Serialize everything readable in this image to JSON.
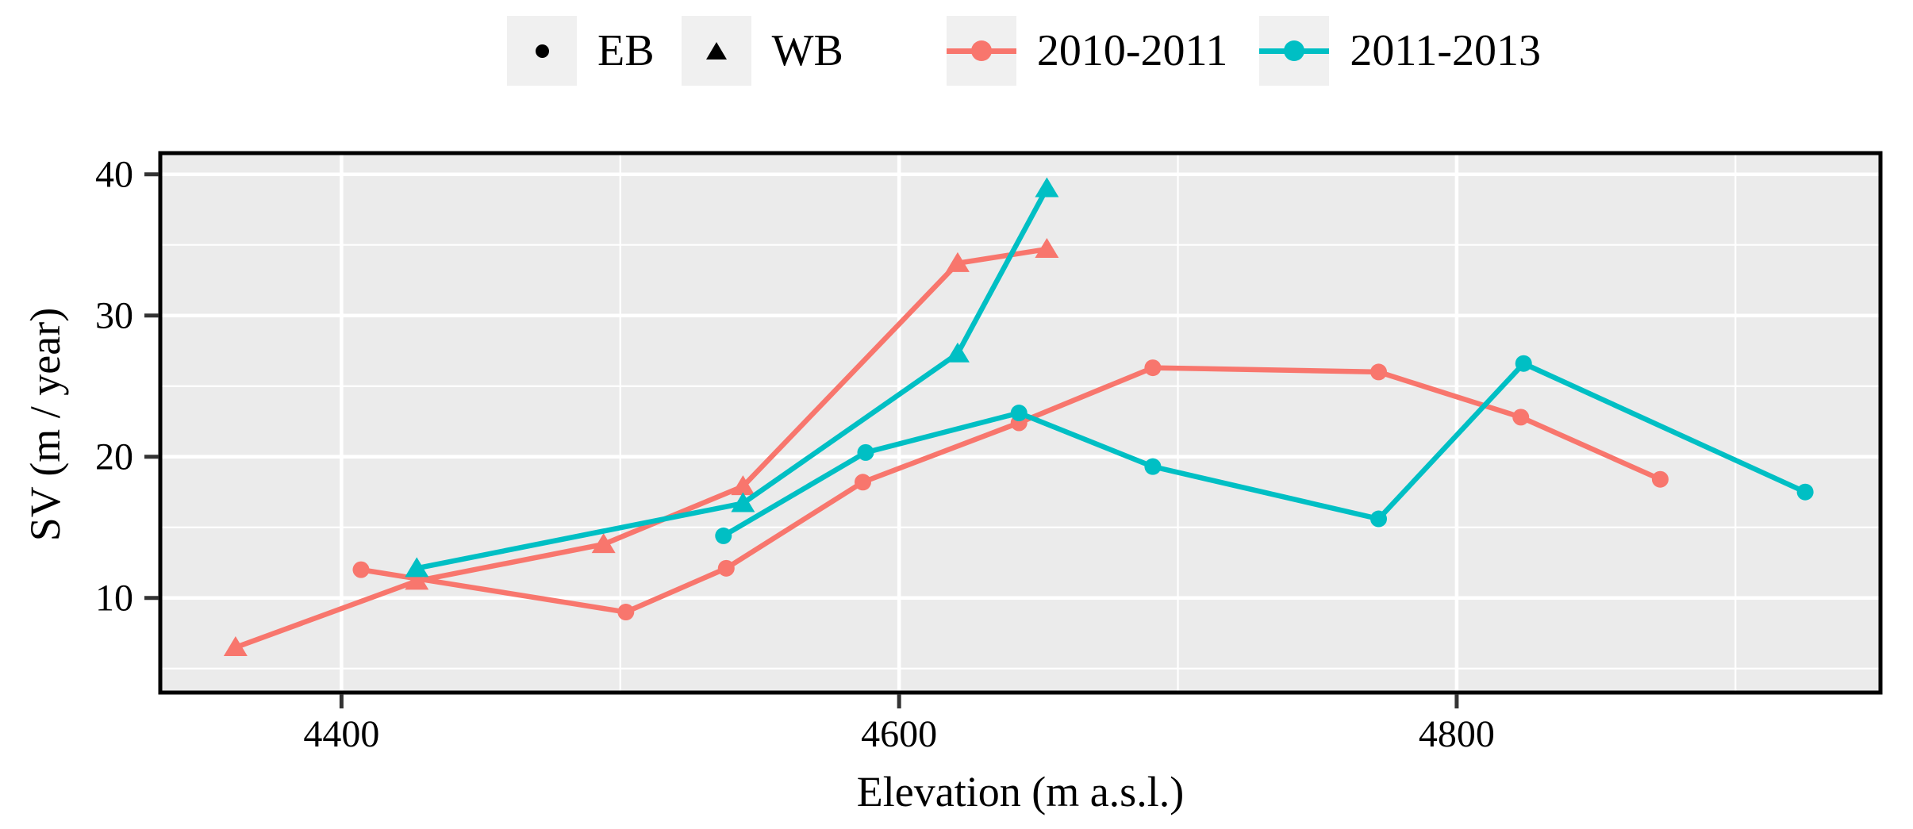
{
  "figure": {
    "xlabel": "Elevation (m a.s.l.)",
    "ylabel": "SV (m / year)"
  },
  "legend": {
    "shape_items": [
      {
        "label": "EB",
        "marker": "circle"
      },
      {
        "label": "WB",
        "marker": "triangle"
      }
    ],
    "color_items": [
      {
        "label": "2010-2011",
        "color": "#F8766D"
      },
      {
        "label": "2011-2013",
        "color": "#00BFC4"
      }
    ]
  },
  "chart_data": {
    "type": "line",
    "title": "",
    "xlabel": "Elevation (m a.s.l.)",
    "ylabel": "SV (m / year)",
    "xlim": [
      4335,
      4952
    ],
    "ylim": [
      3.3,
      41.5
    ],
    "x_major_ticks": [
      4400,
      4600,
      4800
    ],
    "x_minor_ticks": [
      4500,
      4700,
      4900
    ],
    "y_major_ticks": [
      10,
      20,
      30,
      40
    ],
    "y_minor_ticks": [
      5,
      15,
      25,
      35
    ],
    "grid": true,
    "legend_position": "top",
    "colors": {
      "panel_bg": "#EBEBEB",
      "grid": "#FFFFFF",
      "legend_key_bg": "#F0F0F0",
      "panel_border": "#000000",
      "tick": "#333333",
      "salmon": "#F8766D",
      "teal": "#00BFC4"
    },
    "series": [
      {
        "name": "EB 2010-2011",
        "glacier": "EB",
        "period": "2010-2011",
        "color": "#F8766D",
        "marker": "circle",
        "points": [
          [
            4407,
            12.0
          ],
          [
            4502,
            9.0
          ],
          [
            4538,
            12.1
          ],
          [
            4587,
            18.2
          ],
          [
            4643,
            22.4
          ],
          [
            4691,
            26.3
          ],
          [
            4772,
            26.0
          ],
          [
            4823,
            22.8
          ],
          [
            4873,
            18.4
          ]
        ]
      },
      {
        "name": "WB 2010-2011",
        "glacier": "WB",
        "period": "2010-2011",
        "color": "#F8766D",
        "marker": "triangle",
        "points": [
          [
            4362,
            6.5
          ],
          [
            4427,
            11.2
          ],
          [
            4494,
            13.8
          ],
          [
            4544,
            17.9
          ],
          [
            4621,
            33.7
          ],
          [
            4653,
            34.7
          ]
        ]
      },
      {
        "name": "EB 2011-2013",
        "glacier": "EB",
        "period": "2011-2013",
        "color": "#00BFC4",
        "marker": "circle",
        "points": [
          [
            4537,
            14.4
          ],
          [
            4588,
            20.3
          ],
          [
            4643,
            23.1
          ],
          [
            4691,
            19.3
          ],
          [
            4772,
            15.6
          ],
          [
            4824,
            26.6
          ],
          [
            4925,
            17.5
          ]
        ]
      },
      {
        "name": "WB 2011-2013",
        "glacier": "WB",
        "period": "2011-2013",
        "color": "#00BFC4",
        "marker": "triangle",
        "points": [
          [
            4427,
            12.1
          ],
          [
            4544,
            16.7
          ],
          [
            4621,
            27.3
          ],
          [
            4653,
            39.0
          ]
        ]
      }
    ]
  }
}
